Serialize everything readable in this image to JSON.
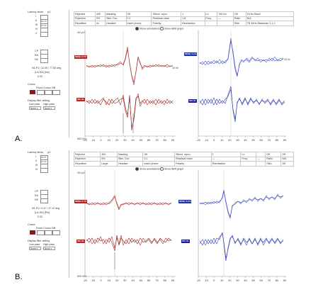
{
  "figure_labels": {
    "a": "A.",
    "b": "B."
  },
  "panel_a": {
    "sidebar": {
      "tab": "Latency times",
      "col_units": "µV",
      "rows": [
        {
          "label": "I",
          "value": ""
        },
        {
          "label": "II",
          "value": "16.10"
        },
        {
          "label": "III",
          "value": "27.32"
        },
        {
          "label": "IV",
          "value": ""
        },
        {
          "label": "V",
          "value": ""
        }
      ],
      "wave_rows": [
        "CP",
        "RA",
        "NC"
      ],
      "ratio_label": "N1-P1 / 12.00 / 77.85",
      "ratio_units": "deg",
      "ratio2_label": "(LA-SA) [ms]",
      "ratio2_value": "0.32",
      "cursor_heading": "Cursor",
      "cursor_cols": [
        "Fixed",
        "Cursor",
        "Diff"
      ],
      "display_heading": "Display filter setting",
      "low_pass_label": "Low pass",
      "high_pass_label": "High pass",
      "low_pass_value": "None",
      "high_pass_value": "None"
    },
    "topbar": [
      [
        "Rejected",
        "400",
        "Masking",
        "Off",
        "Stimul. repro.",
        "1",
        "Lo",
        "750 Hz",
        "Off",
        "15 Hz Band"
      ],
      [
        "Rejection",
        "5%",
        "Stim. Dur.",
        "0.1",
        "Residual noise",
        "1.6",
        "Freq.",
        "---",
        "Ratio",
        "N/A"
      ],
      [
        "Repetition",
        "4x",
        "Headset",
        "Insert phone",
        "Polarity",
        "Rarefaction",
        "",
        "",
        "Stim.",
        "TB 4kHz Blackman 2-1-2"
      ]
    ],
    "radio_left": "Show annotations",
    "radio_right": "Show ABR graph",
    "y_unit": "110 µV",
    "y_unit_bottom": "500 nV/L",
    "left_tags": {
      "upper": "500Hz A 70",
      "lower": "500 Hz"
    },
    "right_tags": {
      "upper": "500Hz A 3.3",
      "lower": "500 Hz"
    },
    "scale_label": "15 nV",
    "x_ticks": [
      "-20",
      "-10",
      "0",
      "10",
      "20",
      "30",
      "40",
      "50",
      "60",
      "70",
      "80",
      "90"
    ]
  },
  "panel_b": {
    "sidebar": {
      "tab": "Latency times",
      "col_units": "µV",
      "rows": [
        {
          "label": "I",
          "value": "15.67"
        },
        {
          "label": "II",
          "value": "27.32"
        },
        {
          "label": "III",
          "value": ""
        },
        {
          "label": "IV",
          "value": ""
        }
      ],
      "wave_rows": [
        "CP",
        "RA",
        "NC"
      ],
      "ratio_label": "N1-P1 / 3.47 / 47.12",
      "ratio_units": "deg",
      "ratio2_label": "(LA-SA) [Pm]",
      "ratio2_value": "0.32",
      "cursor_heading": "Cursor",
      "cursor_cols": [
        "Fixed",
        "Cursor",
        "Diff"
      ],
      "display_heading": "Display filter setting",
      "low_pass_label": "Low pass",
      "high_pass_label": "High pass",
      "low_pass_value": "None",
      "high_pass_value": "None"
    },
    "topbar": [
      [
        "Rejected",
        "400",
        "Masking",
        "Off",
        "Stimul. repro.",
        "1",
        "Lo",
        "",
        "Off",
        "Off"
      ],
      [
        "Rejection",
        "5%",
        "Stim. Dur.",
        "0.1",
        "Residual noise",
        "---",
        "Freq.",
        "---",
        "Ratio",
        "N/A"
      ],
      [
        "Repetition",
        "Large",
        "Headset",
        "Insert phone",
        "Polarity",
        "Rarefaction",
        "",
        "",
        "Stim.",
        "Off"
      ]
    ],
    "radio_left": "Show annotations",
    "radio_right": "Show ABR graph",
    "y_unit": "110 µV",
    "y_unit_bottom": "500 nV/L",
    "left_tags": {
      "upper": "500Hz A 70",
      "lower": "500 Hz"
    },
    "right_tags": {
      "upper": "500Hz A 3.3",
      "lower": "500 Hz"
    },
    "x_ticks": [
      "-20",
      "-10",
      "0",
      "10",
      "20",
      "30",
      "40",
      "50",
      "60",
      "70",
      "80",
      "90"
    ]
  },
  "colors": {
    "left_trace": "#b03030",
    "right_trace": "#3a45c0",
    "grid_center": "#cccccc",
    "axis": "#999999"
  }
}
